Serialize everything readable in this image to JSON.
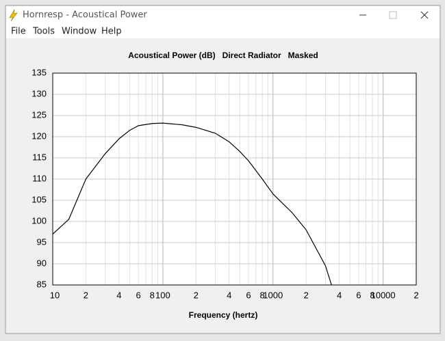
{
  "window": {
    "title": "Hornresp - Acoustical Power"
  },
  "menu": [
    "File",
    "Tools",
    "Window",
    "Help"
  ],
  "chart_data": {
    "type": "line",
    "title": "Acoustical Power (dB)   Direct Radiator   Masked",
    "x_label": "Frequency (hertz)",
    "x": [
      10,
      14,
      20,
      30,
      40,
      50,
      60,
      80,
      100,
      150,
      200,
      300,
      400,
      500,
      600,
      800,
      1000,
      1500,
      2000,
      3000,
      3400
    ],
    "values": [
      97,
      100.5,
      110,
      116,
      119.5,
      121.5,
      122.6,
      123.1,
      123.2,
      122.8,
      122.2,
      120.8,
      118.8,
      116.5,
      114.3,
      110,
      106.5,
      102,
      98,
      89.5,
      85
    ],
    "color": "#000000",
    "log_x": true,
    "grid": true,
    "xlim": [
      10,
      20000
    ],
    "ylim": [
      85,
      135
    ],
    "xticks": [
      10,
      {
        "value": 20,
        "label": "2"
      },
      {
        "value": 40,
        "label": "4"
      },
      {
        "value": 60,
        "label": "6"
      },
      {
        "value": 80,
        "label": "8"
      },
      100,
      {
        "value": 200,
        "label": "2"
      },
      {
        "value": 400,
        "label": "4"
      },
      {
        "value": 600,
        "label": "6"
      },
      {
        "value": 800,
        "label": "8"
      },
      1000,
      {
        "value": 2000,
        "label": "2"
      },
      {
        "value": 4000,
        "label": "4"
      },
      {
        "value": 6000,
        "label": "6"
      },
      {
        "value": 8000,
        "label": "8"
      },
      10000,
      {
        "value": 20000,
        "label": "2"
      }
    ],
    "xminor_ticks": [
      30,
      50,
      70,
      90,
      300,
      500,
      700,
      900,
      3000,
      5000,
      7000,
      9000
    ],
    "yticks": [
      85,
      90,
      95,
      100,
      105,
      110,
      115,
      120,
      125,
      130,
      135
    ]
  }
}
